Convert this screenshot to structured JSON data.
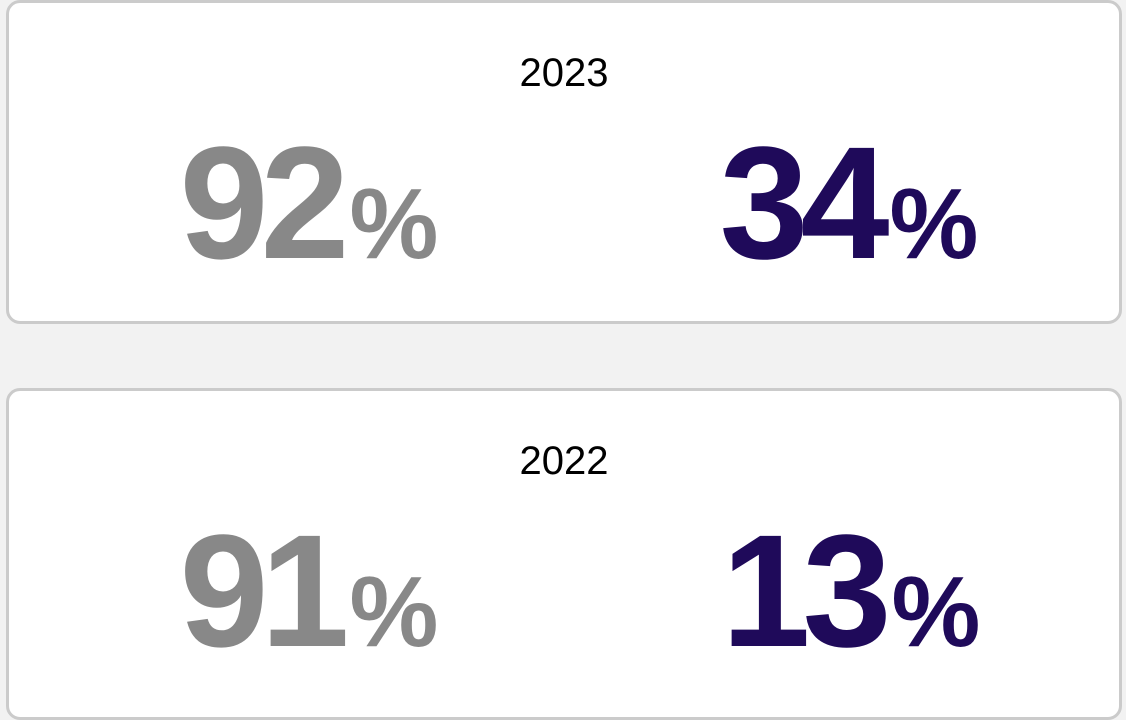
{
  "cards": [
    {
      "year": "2023",
      "stats": [
        {
          "value": 92,
          "unit": "%"
        },
        {
          "value": 34,
          "unit": "%"
        }
      ]
    },
    {
      "year": "2022",
      "stats": [
        {
          "value": 91,
          "unit": "%"
        },
        {
          "value": 13,
          "unit": "%"
        }
      ]
    }
  ]
}
